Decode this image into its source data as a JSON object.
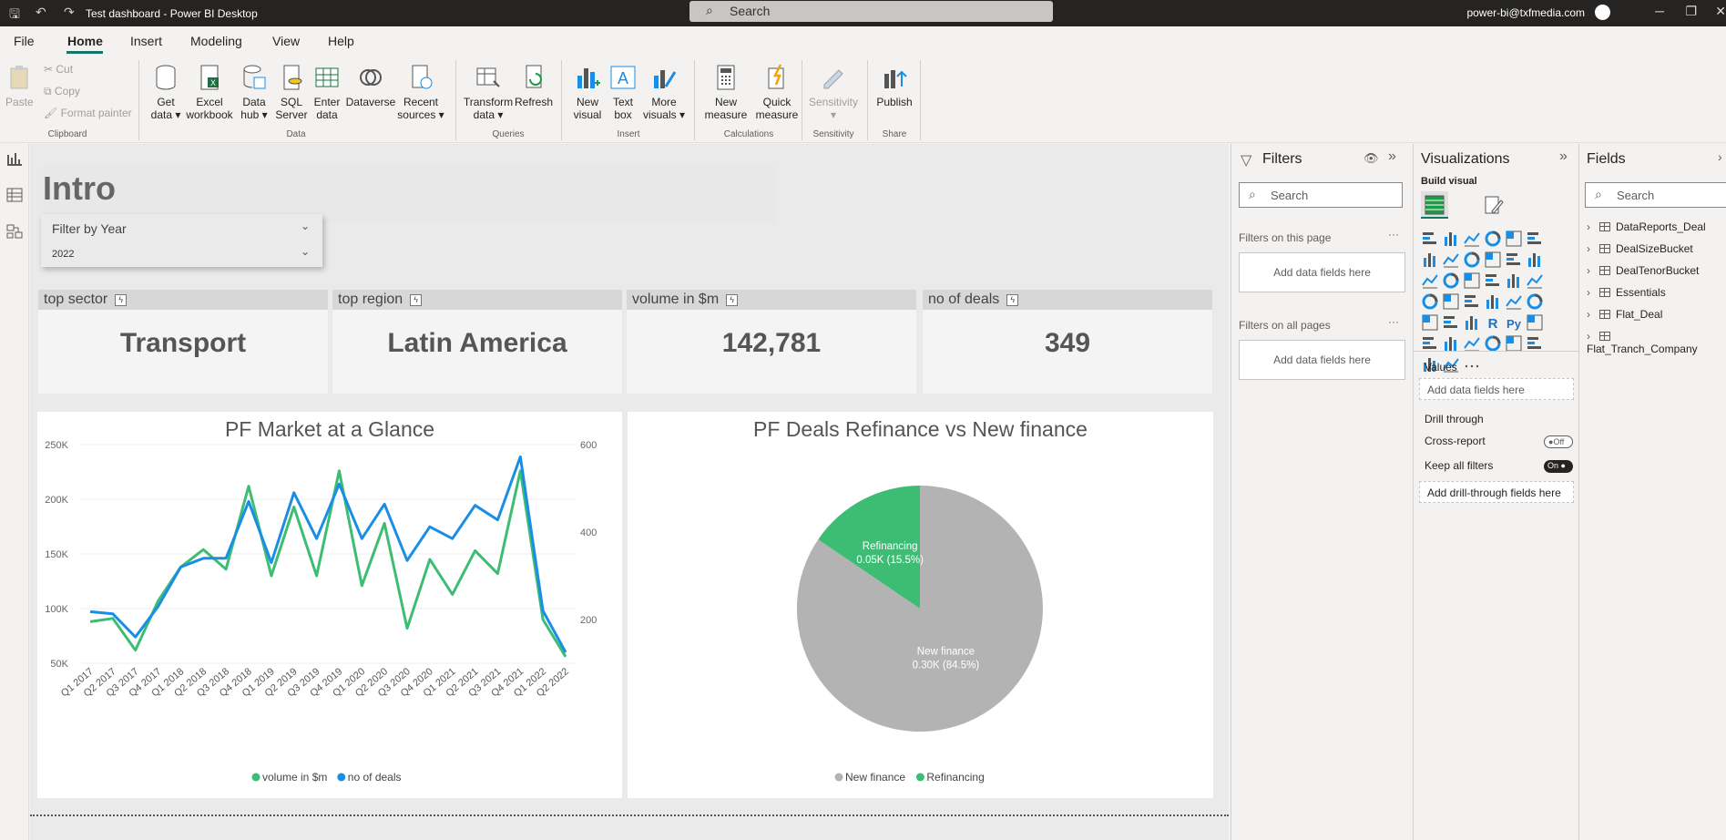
{
  "window": {
    "title": "Test dashboard - Power BI Desktop",
    "search_placeholder": "Search",
    "user": "power-bi@txfmedia.com"
  },
  "menu": [
    "File",
    "Home",
    "Insert",
    "Modeling",
    "View",
    "Help"
  ],
  "ribbon": {
    "clipboard": {
      "paste": "Paste",
      "cut": "Cut",
      "copy": "Copy",
      "format_painter": "Format painter",
      "group": "Clipboard"
    },
    "data": {
      "get_data": "Get data",
      "excel": "Excel workbook",
      "data_hub": "Data hub",
      "sql": "SQL Server",
      "enter_data": "Enter data",
      "dataverse": "Dataverse",
      "recent": "Recent sources",
      "group": "Data"
    },
    "queries": {
      "transform": "Transform data",
      "refresh": "Refresh",
      "group": "Queries"
    },
    "insert": {
      "new_visual": "New visual",
      "text_box": "Text box",
      "more_visuals": "More visuals",
      "group": "Insert"
    },
    "calculations": {
      "new_measure": "New measure",
      "quick_measure": "Quick measure",
      "group": "Calculations"
    },
    "sensitivity": {
      "label": "Sensitivity",
      "group": "Sensitivity"
    },
    "share": {
      "publish": "Publish",
      "group": "Share"
    }
  },
  "report": {
    "title": "Intro",
    "slicer": {
      "label": "Filter by Year",
      "value": "2022"
    },
    "cards": [
      {
        "label": "top sector",
        "value": "Transport"
      },
      {
        "label": "top region",
        "value": "Latin America"
      },
      {
        "label": "volume in $m",
        "value": "142,781"
      },
      {
        "label": "no of deals",
        "value": "349"
      }
    ]
  },
  "chart_data": [
    {
      "type": "line",
      "title": "PF Market at a Glance",
      "categories": [
        "Q1 2017",
        "Q2 2017",
        "Q3 2017",
        "Q4 2017",
        "Q1 2018",
        "Q2 2018",
        "Q3 2018",
        "Q4 2018",
        "Q1 2019",
        "Q2 2019",
        "Q3 2019",
        "Q4 2019",
        "Q1 2020",
        "Q2 2020",
        "Q3 2020",
        "Q4 2020",
        "Q1 2021",
        "Q2 2021",
        "Q3 2021",
        "Q4 2021",
        "Q1 2022",
        "Q2 2022"
      ],
      "x_tick_labels": [
        "Q1 2017",
        "Q2 2017",
        "Q3 2017",
        "Q4 2017",
        "Q1 2018",
        "Q2 2018",
        "Q3 2018",
        "Q4 2018",
        "Q1 2019",
        "Q2 2019",
        "Q3 2019",
        "Q4 2019",
        "Q1 2020",
        "Q2 2020",
        "Q3 2020",
        "Q4 2020",
        "Q1 2021",
        "Q2 2021",
        "Q3 2021",
        "Q4 2021",
        "Q1 2022",
        "Q2 2022"
      ],
      "series": [
        {
          "name": "volume in $m",
          "axis": "left",
          "color": "#3dbd74",
          "values": [
            88000,
            91000,
            62000,
            107000,
            138000,
            154000,
            136000,
            212000,
            130000,
            193000,
            130000,
            226000,
            121000,
            178000,
            82000,
            145000,
            113000,
            153000,
            132000,
            226000,
            90000,
            56000
          ]
        },
        {
          "name": "no of deals",
          "axis": "right",
          "color": "#1a8ee5",
          "values": [
            218,
            213,
            160,
            230,
            320,
            340,
            340,
            470,
            330,
            490,
            385,
            510,
            385,
            464,
            335,
            412,
            385,
            461,
            428,
            572,
            220,
            125
          ]
        }
      ],
      "y_left": {
        "ticks": [
          "250K",
          "200K",
          "150K",
          "100K",
          "50K"
        ],
        "min": 50000,
        "max": 250000
      },
      "y_right": {
        "ticks": [
          "600",
          "400",
          "200"
        ],
        "min": 100,
        "max": 600
      },
      "legend": [
        "volume in $m",
        "no of deals"
      ],
      "legend_position": "bottom"
    },
    {
      "type": "pie",
      "title": "PF Deals Refinance vs New finance",
      "slices": [
        {
          "name": "New finance",
          "value": 0.3,
          "label": "0.30K (84.5%)",
          "percent": 84.5,
          "color": "#b3b3b3"
        },
        {
          "name": "Refinancing",
          "value": 0.05,
          "label": "0.05K (15.5%)",
          "percent": 15.5,
          "color": "#3dbd74"
        }
      ],
      "legend": [
        "New finance",
        "Refinancing"
      ],
      "legend_position": "bottom"
    }
  ],
  "filters": {
    "title": "Filters",
    "search": "Search",
    "on_page": "Filters on this page",
    "on_all": "Filters on all pages",
    "add": "Add data fields here"
  },
  "visualizations": {
    "title": "Visualizations",
    "build": "Build visual",
    "values": "Values",
    "add_values": "Add data fields here",
    "drill": "Drill through",
    "cross_report": "Cross-report",
    "cross_state": "Off",
    "keep_filters": "Keep all filters",
    "keep_state": "On",
    "add_drill": "Add drill-through fields here",
    "more": "···"
  },
  "fields": {
    "title": "Fields",
    "search": "Search",
    "tables": [
      "DataReports_Deal",
      "DealSizeBucket",
      "DealTenorBucket",
      "Essentials",
      "Flat_Deal",
      "Flat_Tranch_Company"
    ]
  }
}
